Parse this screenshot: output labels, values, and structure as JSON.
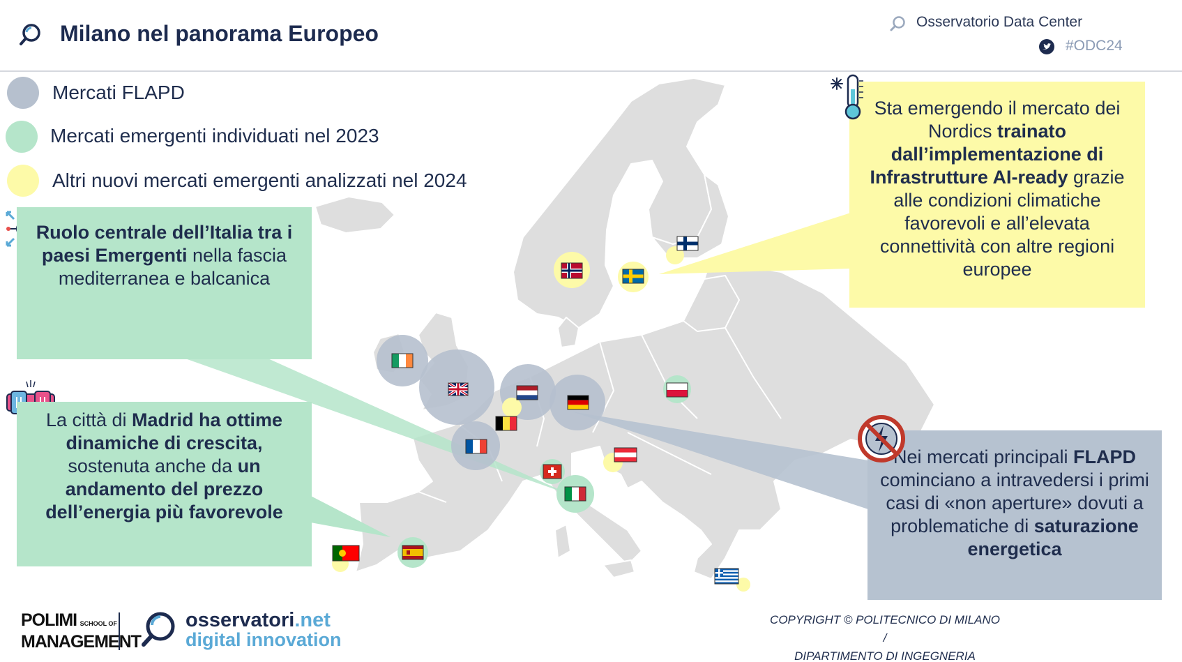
{
  "header": {
    "title": "Milano nel panorama Europeo",
    "organization": "Osservatorio Data Center",
    "hashtag": "#ODC24",
    "icon": "search-magnifier-icon",
    "social_icon": "twitter-icon"
  },
  "legend": [
    {
      "label": "Mercati FLAPD",
      "color": "#b6c0ce"
    },
    {
      "label": "Mercati emergenti individuati nel 2023",
      "color": "#b5e5ca"
    },
    {
      "label": "Altri nuovi mercati emergenti analizzati nel 2024",
      "color": "#fdfaa8"
    }
  ],
  "callouts": {
    "italy": {
      "bold1": "Ruolo centrale dell’Italia tra i paesi Emergenti",
      "text1": " nella fascia mediterranea e balcanica",
      "icon": "network-hub-icon"
    },
    "madrid": {
      "text1": "La città di ",
      "bold1": "Madrid ha ottime dinamiche di crescita,",
      "text2": " sostenuta anche da ",
      "bold2": "un andamento del prezzo dell’energia più favorevole",
      "icon": "server-rack-icon"
    },
    "nordics": {
      "text1": "Sta emergendo il mercato dei Nordics ",
      "bold1": "trainato dall’implementazione di Infrastrutture AI-ready",
      "text2": " grazie alle condizioni climatiche favorevoli e all’elevata connettività con altre regioni europee",
      "icon": "thermometer-cold-icon"
    },
    "flapd": {
      "text1": "Nei mercati principali ",
      "bold1": "FLAPD",
      "text2": " cominciano a intravedersi i primi casi di «non aperture» dovuti a problematiche di ",
      "bold2": "saturazione energetica",
      "icon": "no-power-icon"
    }
  },
  "markers": [
    {
      "country": "Ireland",
      "category": "FLAPD"
    },
    {
      "country": "United Kingdom",
      "category": "FLAPD"
    },
    {
      "country": "Netherlands",
      "category": "FLAPD"
    },
    {
      "country": "Germany",
      "category": "FLAPD"
    },
    {
      "country": "France",
      "category": "FLAPD"
    },
    {
      "country": "Belgium",
      "category": "2024"
    },
    {
      "country": "Norway",
      "category": "2024"
    },
    {
      "country": "Sweden",
      "category": "2024"
    },
    {
      "country": "Finland",
      "category": "2024"
    },
    {
      "country": "Poland",
      "category": "2023"
    },
    {
      "country": "Austria",
      "category": "2024"
    },
    {
      "country": "Switzerland",
      "category": "2023"
    },
    {
      "country": "Italy",
      "category": "2023"
    },
    {
      "country": "Spain",
      "category": "2023"
    },
    {
      "country": "Portugal",
      "category": "2024"
    },
    {
      "country": "Greece",
      "category": "2024"
    }
  ],
  "footer": {
    "polimi_line1": "POLIMI",
    "polimi_line2": "MANAGEMENT",
    "polimi_school_1": "SCHOOL OF",
    "oss_name": "osservatori",
    "oss_net": ".net",
    "oss_sub": "digital innovation",
    "copyright_line1": "COPYRIGHT © POLITECNICO DI MILANO /",
    "copyright_line2": "DIPARTIMENTO DI INGEGNERIA GESTIONALE"
  }
}
